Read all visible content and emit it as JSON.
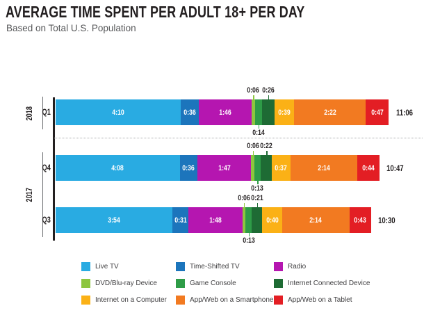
{
  "header": {
    "title": "AVERAGE TIME SPENT PER ADULT 18+ PER DAY",
    "subtitle": "Based on Total U.S. Population"
  },
  "chart_data": {
    "type": "bar",
    "stacked": true,
    "orientation": "horizontal",
    "title": "AVERAGE TIME SPENT PER ADULT 18+ PER DAY",
    "subtitle": "Based on Total U.S. Population",
    "value_format": "h:mm per day",
    "series_names": [
      "Live TV",
      "Time-Shifted TV",
      "Radio",
      "DVD/Blu-ray Device",
      "Game Console",
      "Internet Connected Device",
      "Internet on a Computer",
      "App/Web on a Smartphone",
      "App/Web on a Tablet"
    ],
    "series_colors": [
      "#29ABE2",
      "#1C75BC",
      "#B516B0",
      "#8DC63F",
      "#2E9C47",
      "#1E6B34",
      "#FBB116",
      "#F27A21",
      "#E31E24"
    ],
    "rows": [
      {
        "group": "2018",
        "category": "Q1",
        "labels": [
          "4:10",
          "0:36",
          "1:46",
          "0:06",
          "0:14",
          "0:26",
          "0:39",
          "2:22",
          "0:47"
        ],
        "minutes": [
          250,
          36,
          106,
          6,
          14,
          26,
          39,
          142,
          47
        ],
        "total_label": "11:06",
        "total_minutes": 666
      },
      {
        "group": "2017",
        "category": "Q4",
        "labels": [
          "4:08",
          "0:36",
          "1:47",
          "0:06",
          "0:13",
          "0:22",
          "0:37",
          "2:14",
          "0:44"
        ],
        "minutes": [
          248,
          36,
          107,
          6,
          13,
          22,
          37,
          134,
          44
        ],
        "total_label": "10:47",
        "total_minutes": 647
      },
      {
        "group": "2017",
        "category": "Q3",
        "labels": [
          "3:54",
          "0:31",
          "1:48",
          "0:06",
          "0:13",
          "0:21",
          "0:40",
          "2:14",
          "0:43"
        ],
        "minutes": [
          234,
          31,
          108,
          6,
          13,
          21,
          40,
          134,
          43
        ],
        "total_label": "10:30",
        "total_minutes": 630
      }
    ],
    "label_placement": {
      "inside": [
        0,
        1,
        2,
        6,
        7,
        8
      ],
      "above": [
        3,
        5
      ],
      "below": [
        4
      ]
    },
    "x_max_minutes": 666,
    "legend_position": "bottom",
    "year_groups": [
      {
        "label": "2018",
        "categories": [
          "Q1"
        ]
      },
      {
        "label": "2017",
        "categories": [
          "Q4",
          "Q3"
        ]
      }
    ]
  },
  "legend": {
    "items": [
      {
        "label": "Live TV",
        "color": "#29ABE2"
      },
      {
        "label": "Time-Shifted TV",
        "color": "#1C75BC"
      },
      {
        "label": "Radio",
        "color": "#B516B0"
      },
      {
        "label": "DVD/Blu-ray Device",
        "color": "#8DC63F"
      },
      {
        "label": "Game Console",
        "color": "#2E9C47"
      },
      {
        "label": "Internet Connected Device",
        "color": "#1E6B34"
      },
      {
        "label": "Internet on a Computer",
        "color": "#FBB116"
      },
      {
        "label": "App/Web on a Smartphone",
        "color": "#F27A21"
      },
      {
        "label": "App/Web on a Tablet",
        "color": "#E31E24"
      }
    ]
  }
}
